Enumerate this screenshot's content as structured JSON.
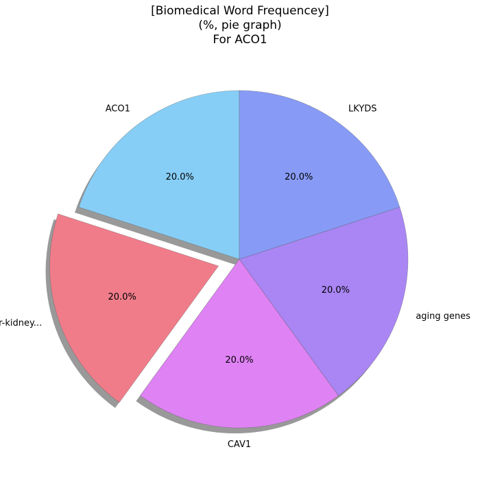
{
  "chart_data": {
    "type": "pie",
    "title_lines": [
      "[Biomedical Word Frequencey]",
      "(%, pie graph)",
      "For ACO1"
    ],
    "slices": [
      {
        "label": "ACO1",
        "value": 20.0,
        "pct_label": "20.0%",
        "color": "#87CEF6",
        "exploded": false
      },
      {
        "label": "liver-kidney...",
        "value": 20.0,
        "pct_label": "20.0%",
        "color": "#F07C8A",
        "exploded": true
      },
      {
        "label": "CAV1",
        "value": 20.0,
        "pct_label": "20.0%",
        "color": "#DF82F4",
        "exploded": false
      },
      {
        "label": "aging genes",
        "value": 20.0,
        "pct_label": "20.0%",
        "color": "#A986F4",
        "exploded": false
      },
      {
        "label": "LKYDS",
        "value": 20.0,
        "pct_label": "20.0%",
        "color": "#879BF6",
        "exploded": false
      }
    ],
    "start_angle_deg": 90,
    "direction": "counterclockwise",
    "shadow": true
  }
}
